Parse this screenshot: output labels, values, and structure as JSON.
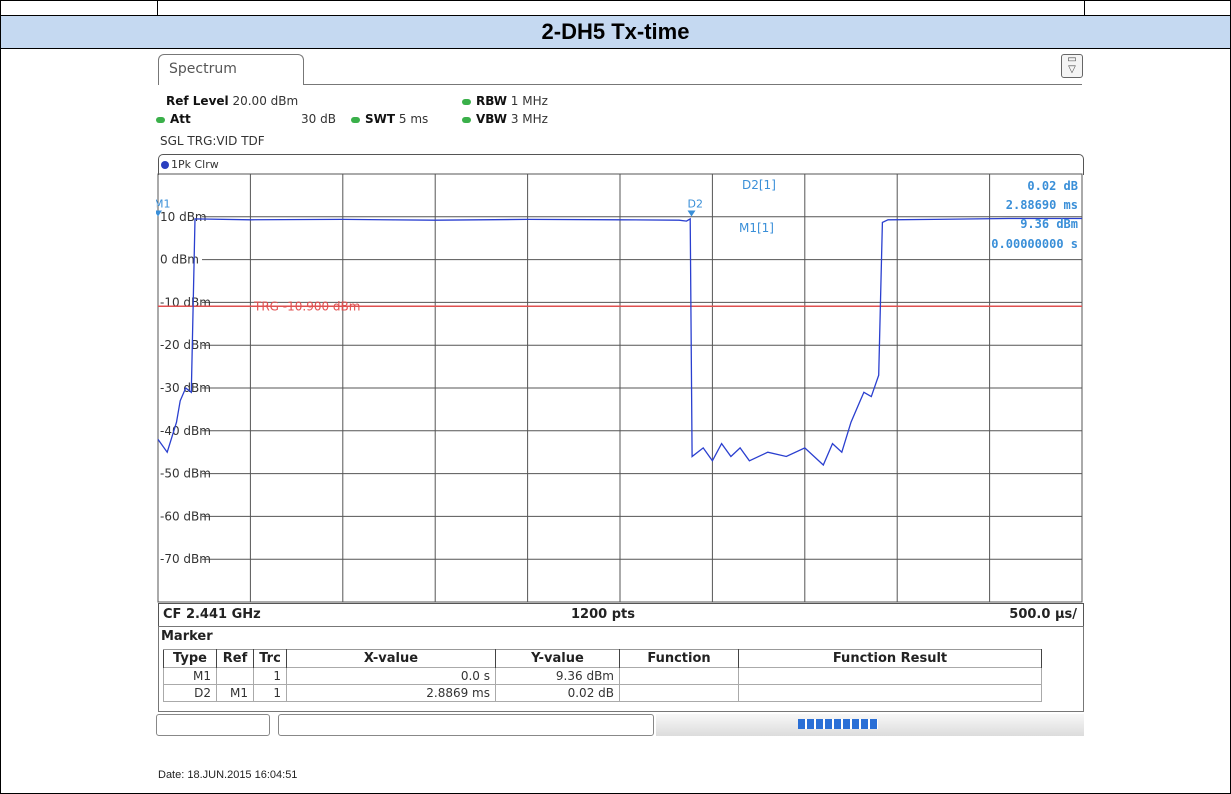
{
  "page": {
    "title": "2-DH5 Tx-time",
    "date_line": "Date: 18.JUN.2015 16:04:51"
  },
  "analyzer": {
    "tab_label": "Spectrum",
    "ref_level_label": "Ref Level",
    "ref_level_value": "20.00 dBm",
    "att_label": "Att",
    "att_value": "30 dB",
    "swt_label": "SWT",
    "swt_value": "5 ms",
    "rbw_label": "RBW",
    "rbw_value": "1 MHz",
    "vbw_label": "VBW",
    "vbw_value": "3 MHz",
    "trigger_line": "SGL TRG:VID TDF",
    "trace_label": "1Pk Clrw",
    "footer_left": "CF 2.441 GHz",
    "footer_center": "1200 pts",
    "footer_right": "500.0 µs/",
    "colors": {
      "trace": "#2a3fcf",
      "trigger": "#e05050",
      "marker_text": "#3a8fd8"
    }
  },
  "readout": {
    "d2_label": "D2[1]",
    "m1_label": "M1[1]",
    "d2_level": "0.02 dB",
    "d2_time": "2.88690 ms",
    "m1_level": "9.36 dBm",
    "m1_time": "0.00000000 s"
  },
  "marker_table": {
    "caption": "Marker",
    "columns": [
      "Type",
      "Ref",
      "Trc",
      "X-value",
      "Y-value",
      "Function",
      "Function Result"
    ],
    "rows": [
      [
        "M1",
        "",
        "1",
        "0.0 s",
        "9.36 dBm",
        "",
        ""
      ],
      [
        "D2",
        "M1",
        "1",
        "2.8869 ms",
        "0.02 dB",
        "",
        ""
      ]
    ]
  },
  "chart_data": {
    "type": "line",
    "x_unit": "ms",
    "xlim": [
      0,
      5
    ],
    "ylim": [
      -80,
      20
    ],
    "y_ticks": [
      10,
      0,
      -10,
      -20,
      -30,
      -40,
      -50,
      -60,
      -70
    ],
    "y_tick_labels": [
      "10 dBm",
      "0 dBm",
      "-10 dBm",
      "-20 dBm",
      "-30 dBm",
      "-40 dBm",
      "-50 dBm",
      "-60 dBm",
      "-70 dBm"
    ],
    "grid": true,
    "trigger_level": -10.9,
    "trigger_label": "TRG -10.900 dBm",
    "markers": [
      {
        "name": "M1",
        "x": 0.0,
        "y": 9.36
      },
      {
        "name": "D2",
        "x": 2.8869,
        "y": 9.38
      }
    ],
    "series": [
      {
        "x": [
          0,
          0.05,
          0.1,
          0.12,
          0.15,
          0.18,
          0.2,
          0.5,
          1.0,
          1.5,
          2.0,
          2.5,
          2.82,
          2.86,
          2.88,
          2.89,
          2.95,
          3.0,
          3.05,
          3.1,
          3.15,
          3.2,
          3.3,
          3.4,
          3.5,
          3.6,
          3.65,
          3.7,
          3.75,
          3.8,
          3.82,
          3.86,
          3.9,
          3.92,
          3.95,
          4.2,
          4.6,
          5.0
        ],
        "y": [
          -42,
          -45,
          -38,
          -33,
          -30,
          -31,
          9.5,
          9.3,
          9.4,
          9.2,
          9.4,
          9.3,
          9.2,
          9.0,
          9.5,
          -46,
          -44,
          -47,
          -43,
          -46,
          -44,
          -47,
          -45,
          -46,
          -44,
          -48,
          -43,
          -45,
          -38,
          -33,
          -31,
          -32,
          -27,
          8.7,
          9.3,
          9.4,
          9.6,
          9.6
        ]
      }
    ]
  }
}
